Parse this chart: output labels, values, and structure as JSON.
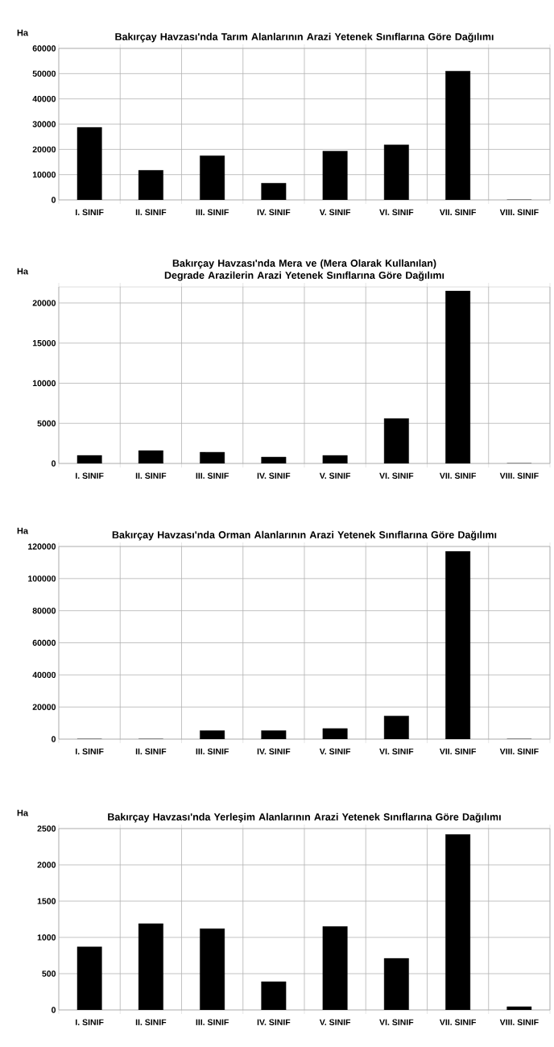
{
  "chart_data": [
    {
      "type": "bar",
      "title": "Bakırçay Havzası'nda Tarım Alanlarının Arazi Yetenek Sınıflarına Göre Dağılımı",
      "ylabel": "Ha",
      "categories": [
        "I. SINIF",
        "II. SINIF",
        "III. SINIF",
        "IV. SINIF",
        "V. SINIF",
        "VI. SINIF",
        "VII. SINIF",
        "VIII. SINIF"
      ],
      "values": [
        28700,
        11700,
        17500,
        6600,
        19300,
        21800,
        51000,
        0
      ],
      "color": "#000000",
      "ylim": [
        0,
        60000
      ],
      "yticks": [
        0,
        10000,
        20000,
        30000,
        40000,
        50000,
        60000
      ],
      "grid": true
    },
    {
      "type": "bar",
      "title": "Bakırçay Havzası'nda Mera ve (Mera Olarak Kullanılan) Degrade Arazilerin Arazi Yetenek Sınıflarına Göre Dağılımı",
      "ylabel": "Ha",
      "categories": [
        "I. SINIF",
        "II. SINIF",
        "III. SINIF",
        "IV. SINIF",
        "V. SINIF",
        "VI. SINIF",
        "VII. SINIF",
        "VIII. SINIF"
      ],
      "values": [
        1000,
        1600,
        1400,
        800,
        1000,
        5600,
        21500,
        0
      ],
      "color": "#000000",
      "ylim": [
        0,
        22000
      ],
      "yticks": [
        0,
        5000,
        10000,
        15000,
        20000
      ],
      "grid": true
    },
    {
      "type": "bar",
      "title": "Bakırçay Havzası'nda Orman Alanlarının Arazi Yetenek Sınıflarına Göre Dağılımı",
      "ylabel": "Ha",
      "categories": [
        "I. SINIF",
        "II. SINIF",
        "III. SINIF",
        "IV. SINIF",
        "V. SINIF",
        "VI. SINIF",
        "VII. SINIF",
        "VIII. SINIF"
      ],
      "values": [
        0,
        0,
        5300,
        5300,
        6600,
        14400,
        117000,
        0
      ],
      "color": "#000000",
      "ylim": [
        0,
        120000
      ],
      "yticks": [
        0,
        20000,
        40000,
        60000,
        80000,
        100000,
        120000
      ],
      "grid": true
    },
    {
      "type": "bar",
      "title": "Bakırçay Havzası'nda Yerleşim Alanlarının Arazi Yetenek Sınıflarına Göre Dağılımı",
      "ylabel": "Ha",
      "categories": [
        "I. SINIF",
        "II. SINIF",
        "III. SINIF",
        "IV. SINIF",
        "V. SINIF",
        "VI. SINIF",
        "VII. SINIF",
        "VIII. SINIF"
      ],
      "values": [
        870,
        1190,
        1120,
        390,
        1150,
        710,
        2420,
        45
      ],
      "color": "#000000",
      "ylim": [
        0,
        2500
      ],
      "yticks": [
        0,
        500,
        1000,
        1500,
        2000,
        2500
      ],
      "grid": true
    }
  ]
}
